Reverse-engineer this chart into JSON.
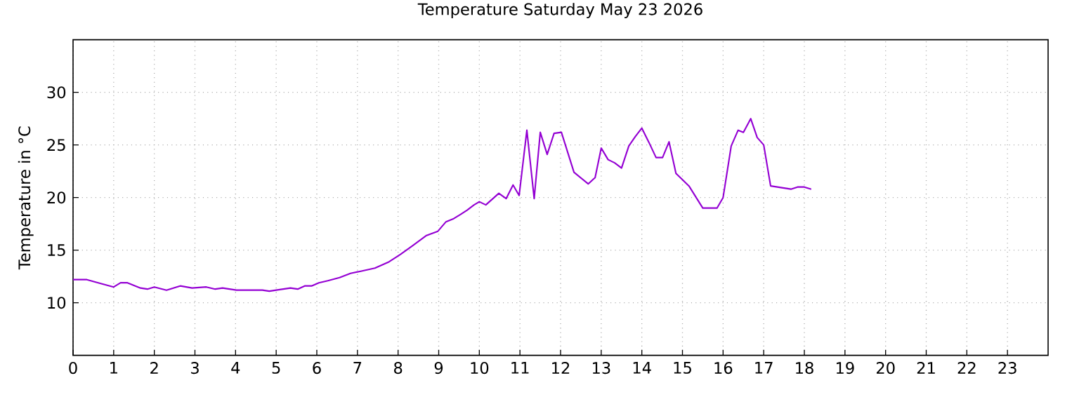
{
  "chart_data": {
    "type": "line",
    "title": "Temperature Saturday May 23 2026",
    "ylabel": "Temperature in °C",
    "xlim": [
      0,
      24
    ],
    "xticks": [
      0,
      1,
      2,
      3,
      4,
      5,
      6,
      7,
      8,
      9,
      10,
      11,
      12,
      13,
      14,
      15,
      16,
      17,
      18,
      19,
      20,
      21,
      22,
      23
    ],
    "ylim": [
      5,
      35
    ],
    "yticks": [
      10,
      15,
      20,
      25,
      30
    ],
    "grid": true,
    "line_style": "solid",
    "marker": "none",
    "series": [
      {
        "color": "#9400d3",
        "x": [
          0,
          0.34,
          0.62,
          1.0,
          1.17,
          1.34,
          1.66,
          1.83,
          2.0,
          2.3,
          2.64,
          2.93,
          3.28,
          3.5,
          3.68,
          4.02,
          4.43,
          4.66,
          4.83,
          5.0,
          5.35,
          5.53,
          5.7,
          5.87,
          6.05,
          6.27,
          6.56,
          6.83,
          7.08,
          7.43,
          7.78,
          8.06,
          8.35,
          8.7,
          8.98,
          9.18,
          9.37,
          9.54,
          9.7,
          9.87,
          10.0,
          10.16,
          10.48,
          10.66,
          10.83,
          10.98,
          11.17,
          11.35,
          11.5,
          11.67,
          11.84,
          12.02,
          12.33,
          12.68,
          12.85,
          13.0,
          13.17,
          13.33,
          13.5,
          13.68,
          13.84,
          14.0,
          14.18,
          14.35,
          14.51,
          14.67,
          14.84,
          15.16,
          15.5,
          15.85,
          16.0,
          16.2,
          16.37,
          16.5,
          16.68,
          16.84,
          17.0,
          17.17,
          17.67,
          17.83,
          18.0,
          18.17
        ],
        "values": [
          12.2,
          12.2,
          11.9,
          11.5,
          11.9,
          11.9,
          11.4,
          11.3,
          11.5,
          11.2,
          11.6,
          11.4,
          11.5,
          11.3,
          11.4,
          11.2,
          11.2,
          11.2,
          11.1,
          11.2,
          11.4,
          11.3,
          11.6,
          11.6,
          11.9,
          12.1,
          12.4,
          12.8,
          13.0,
          13.3,
          13.9,
          14.6,
          15.4,
          16.4,
          16.8,
          17.7,
          18.0,
          18.4,
          18.8,
          19.3,
          19.6,
          19.3,
          20.4,
          19.9,
          21.2,
          20.2,
          26.4,
          19.9,
          26.2,
          24.1,
          26.1,
          26.2,
          22.4,
          21.3,
          21.9,
          24.7,
          23.6,
          23.3,
          22.8,
          24.9,
          25.8,
          26.6,
          25.2,
          23.8,
          23.8,
          25.3,
          22.3,
          21.1,
          19.0,
          19.0,
          20.0,
          24.9,
          26.4,
          26.2,
          27.5,
          25.7,
          25.0,
          21.1,
          20.8,
          21.0,
          21.0,
          20.8
        ]
      }
    ]
  }
}
